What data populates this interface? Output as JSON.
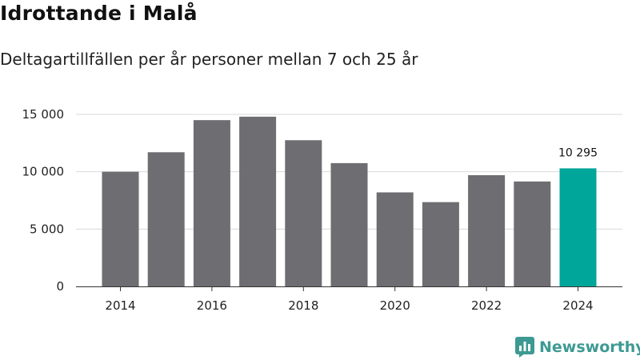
{
  "header": {
    "title": "Idrottande i Malå",
    "subtitle": "Deltagartillfällen per år personer mellan 7 och 25 år"
  },
  "brand": {
    "name": "Newsworthy",
    "icon": "bar-chart-icon",
    "color": "#3d9a93"
  },
  "colors": {
    "bar": "#6e6d72",
    "highlight": "#00a69a",
    "grid": "#d9d9d9",
    "axis": "#333333"
  },
  "chart_data": {
    "type": "bar",
    "title": "Idrottande i Malå",
    "subtitle": "Deltagartillfällen per år personer mellan 7 och 25 år",
    "xlabel": "",
    "ylabel": "",
    "categories": [
      "2014",
      "2015",
      "2016",
      "2017",
      "2018",
      "2019",
      "2020",
      "2021",
      "2022",
      "2023",
      "2024"
    ],
    "values": [
      10000,
      11700,
      14500,
      14800,
      12750,
      10750,
      8200,
      7350,
      9700,
      9150,
      10295
    ],
    "ylim": [
      0,
      15000
    ],
    "yticks": [
      0,
      5000,
      10000,
      15000
    ],
    "ytick_labels": [
      "0",
      "5 000",
      "10 000",
      "15 000"
    ],
    "xtick_labels": [
      "2014",
      "2016",
      "2018",
      "2020",
      "2022",
      "2024"
    ],
    "highlight_index": 10,
    "data_labels": [
      {
        "index": 10,
        "text": "10 295"
      }
    ],
    "grid": true,
    "legend": "none"
  }
}
